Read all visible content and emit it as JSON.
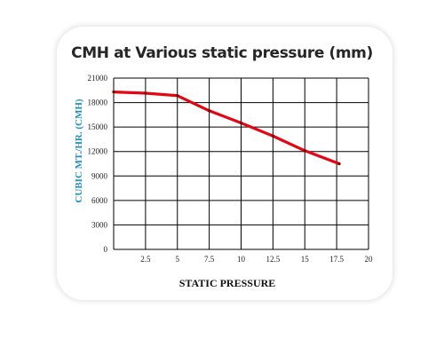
{
  "chart_data": {
    "type": "line",
    "title": "CMH at Various static pressure (mm)",
    "xlabel": "STATIC PRESSURE",
    "ylabel": "CUBIC MT./HR. (CMH)",
    "xlim": [
      0,
      20
    ],
    "ylim": [
      0,
      21000
    ],
    "x_ticks": [
      "2.5",
      "5",
      "7.5",
      "10",
      "12.5",
      "15",
      "17.5",
      "20"
    ],
    "y_ticks": [
      "0",
      "3000",
      "6000",
      "9000",
      "12000",
      "15000",
      "18000",
      "21000"
    ],
    "grid": true,
    "colors": {
      "line": "#e30613",
      "ylabel": "#1f8fbf",
      "grid": "#000000"
    },
    "series": [
      {
        "x": [
          0,
          2.5,
          5,
          7.5,
          10,
          12.5,
          15,
          17.7
        ],
        "y": [
          19300,
          19150,
          18850,
          17000,
          15500,
          13900,
          12100,
          10500
        ]
      }
    ]
  }
}
